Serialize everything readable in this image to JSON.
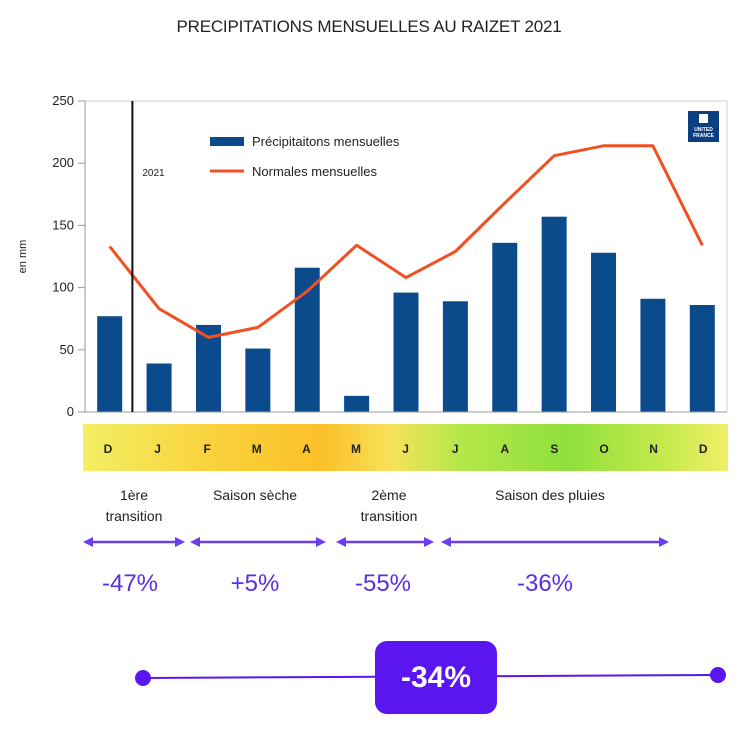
{
  "title": "PRECIPITATIONS MENSUELLES AU RAIZET 2021",
  "colors": {
    "bar": "#0b4a8b",
    "line": "#f25022",
    "accent": "#5b16f0",
    "arrow": "#6a3df0"
  },
  "chart_data": {
    "type": "bar",
    "categories": [
      "D",
      "J",
      "F",
      "M",
      "A",
      "M",
      "J",
      "J",
      "A",
      "S",
      "O",
      "N",
      "D"
    ],
    "series": [
      {
        "name": "Précipitaitons mensuelles",
        "type": "bar",
        "values": [
          77,
          39,
          70,
          51,
          116,
          13,
          96,
          89,
          136,
          157,
          128,
          91,
          86
        ]
      },
      {
        "name": "Normales mensuelles",
        "type": "line",
        "values": [
          133,
          83,
          60,
          68,
          97,
          134,
          108,
          129,
          168,
          206,
          214,
          214,
          134
        ]
      }
    ],
    "ylabel": "en mm",
    "ylim": [
      0,
      250
    ],
    "yticks": [
      0,
      50,
      100,
      150,
      200,
      250
    ],
    "year_marker": "2021",
    "legend": "top-center"
  },
  "logo": {
    "line1": "UNITED",
    "line2": "FRANCE"
  },
  "seasons": [
    {
      "label": "1ère transition",
      "pct": "-47%"
    },
    {
      "label": "Saison sèche",
      "pct": "+5%"
    },
    {
      "label": "2ème transition",
      "pct": "-55%"
    },
    {
      "label": "Saison des pluies",
      "pct": "-36%"
    }
  ],
  "total": "-34%"
}
